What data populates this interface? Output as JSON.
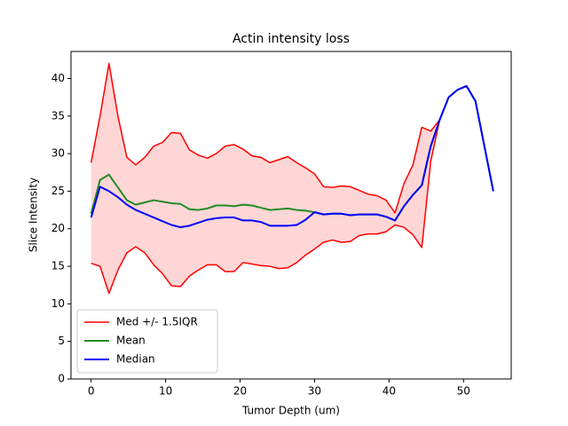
{
  "chart_data": {
    "type": "line",
    "title": "Actin intensity loss",
    "x_label": "Tumor Depth (um)",
    "y_label": "Slice Intensity",
    "x": [
      0,
      1.2,
      2.4,
      3.6,
      4.8,
      6,
      7.2,
      8.4,
      9.6,
      10.8,
      12,
      13.2,
      14.4,
      15.6,
      16.8,
      18,
      19.2,
      20.4,
      21.6,
      22.8,
      24,
      25.2,
      26.4,
      27.6,
      28.8,
      30,
      31.2,
      32.4,
      33.6,
      34.8,
      36,
      37.2,
      38.4,
      39.6,
      40.8,
      42,
      43.2,
      44.4,
      45.6,
      46.8,
      48,
      49.2,
      50.4,
      51.6,
      52.8,
      54
    ],
    "series": [
      {
        "name": "Med +/- 1.5IQR",
        "color": "#ff0000",
        "fill": "#ffd6d6",
        "values": [
          28.8,
          35,
          42,
          35,
          29.5,
          28.5,
          29.5,
          31,
          31.5,
          32.8,
          32.7,
          30.5,
          29.8,
          29.4,
          30,
          31,
          31.2,
          30.6,
          29.7,
          29.5,
          28.8,
          29.2,
          29.6,
          28.8,
          28.1,
          27.3,
          25.6,
          25.5,
          25.7,
          25.6,
          25.1,
          24.6,
          24.4,
          23.8,
          22.1,
          26,
          28.5,
          33.5,
          33,
          34.5,
          37.5,
          38.5,
          39,
          37,
          31,
          25
        ],
        "lower": [
          15.4,
          15,
          11.4,
          14.5,
          16.8,
          17.6,
          16.8,
          15.2,
          14,
          12.4,
          12.3,
          13.7,
          14.5,
          15.2,
          15.2,
          14.3,
          14.3,
          15.5,
          15.3,
          15.1,
          15,
          14.7,
          14.8,
          15.5,
          16.5,
          17.3,
          18.2,
          18.5,
          18.2,
          18.3,
          19.1,
          19.3,
          19.3,
          19.6,
          20.5,
          20.2,
          19.2,
          17.5,
          29,
          34.5,
          37.5,
          38.5,
          39,
          37,
          31,
          25
        ]
      },
      {
        "name": "Mean",
        "color": "#228b22",
        "values": [
          22,
          26.5,
          27.2,
          25.5,
          23.8,
          23.2,
          23.5,
          23.8,
          23.6,
          23.4,
          23.3,
          22.6,
          22.5,
          22.7,
          23.1,
          23.1,
          23,
          23.2,
          23.1,
          22.8,
          22.5,
          22.6,
          22.7,
          22.5,
          22.4,
          22.2,
          21.9,
          22,
          22,
          21.8,
          21.9,
          21.9,
          21.9,
          21.6,
          21.1,
          23,
          24.5,
          25.8,
          31,
          34.5,
          37.5,
          38.5,
          39,
          37,
          31,
          25
        ]
      },
      {
        "name": "Median",
        "color": "#0000ff",
        "values": [
          21.5,
          25.6,
          25,
          24.2,
          23.2,
          22.5,
          22,
          21.5,
          21,
          20.5,
          20.2,
          20.4,
          20.8,
          21.2,
          21.4,
          21.5,
          21.5,
          21.1,
          21.1,
          20.9,
          20.4,
          20.4,
          20.4,
          20.5,
          21.2,
          22.2,
          21.9,
          22,
          22,
          21.8,
          21.9,
          21.9,
          21.9,
          21.6,
          21.1,
          23,
          24.5,
          25.8,
          31,
          34.5,
          37.5,
          38.5,
          39,
          37,
          31,
          25
        ]
      }
    ],
    "xlim": [
      -2.7,
      56.4
    ],
    "ylim": [
      0,
      43.6
    ],
    "xticks": [
      0,
      10,
      20,
      30,
      40,
      50
    ],
    "yticks": [
      0,
      5,
      10,
      15,
      20,
      25,
      30,
      35,
      40
    ],
    "legend": "lower left"
  }
}
